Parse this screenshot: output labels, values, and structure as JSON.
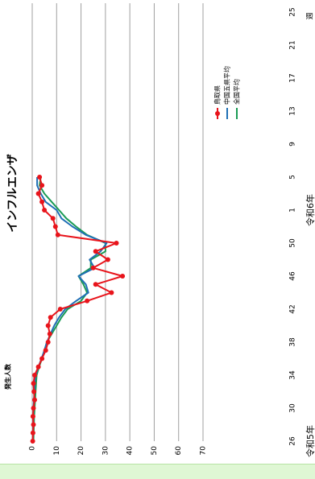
{
  "chart_data": {
    "type": "line",
    "title": "インフルエンザ",
    "ylabel": "発生人数",
    "xlabel": "週",
    "ylim": [
      0,
      70
    ],
    "yticks": [
      0,
      10,
      20,
      30,
      40,
      50,
      60,
      70
    ],
    "x_tick_labels": [
      "26",
      "30",
      "34",
      "38",
      "42",
      "46",
      "50",
      "1",
      "5",
      "9",
      "13",
      "17",
      "21",
      "25"
    ],
    "era_labels": [
      {
        "text": "令和5年",
        "at_week": 26
      },
      {
        "text": "令和6年",
        "at_week": 1
      }
    ],
    "grid": true,
    "legend_position": "top-right",
    "x": [
      26,
      27,
      28,
      29,
      30,
      31,
      32,
      33,
      34,
      35,
      36,
      37,
      38,
      39,
      40,
      41,
      42,
      43,
      44,
      45,
      46,
      47,
      48,
      49,
      50,
      51,
      52,
      1,
      2,
      3,
      4,
      5,
      6
    ],
    "series": [
      {
        "name": "鳥取県",
        "color": "#e8141b",
        "marker": "circle",
        "values": [
          0.2,
          0.3,
          0.5,
          0.3,
          0.5,
          1.0,
          0.7,
          0.5,
          1.0,
          2.5,
          4.0,
          5.5,
          6.5,
          7.2,
          6.5,
          7.5,
          11.5,
          22.5,
          32.5,
          26.0,
          37.0,
          25.0,
          31.0,
          26.0,
          34.5,
          10.5,
          9.5,
          8.5,
          5.0,
          4.0,
          2.5,
          4.0,
          3.0
        ]
      },
      {
        "name": "中国五県平均",
        "color": "#1f6fb5",
        "values": [
          0.2,
          0.3,
          0.4,
          0.4,
          0.5,
          0.7,
          0.9,
          1.0,
          1.4,
          2.5,
          3.8,
          5.0,
          6.0,
          7.5,
          9.0,
          11.0,
          13.5,
          18.0,
          23.0,
          22.0,
          19.0,
          25.5,
          23.5,
          28.0,
          30.5,
          22.0,
          16.5,
          12.0,
          10.0,
          5.5,
          3.5,
          2.0,
          2.0
        ]
      },
      {
        "name": "全国平均",
        "color": "#1a9b55",
        "values": [
          0.5,
          0.6,
          0.7,
          0.8,
          1.0,
          1.2,
          1.4,
          1.6,
          1.8,
          2.8,
          4.0,
          5.0,
          6.0,
          8.0,
          10.0,
          12.0,
          14.5,
          20.0,
          22.5,
          21.0,
          19.0,
          24.0,
          24.0,
          30.0,
          30.0,
          22.5,
          18.0,
          14.0,
          11.0,
          8.0,
          5.0,
          3.0,
          3.5
        ]
      }
    ]
  }
}
